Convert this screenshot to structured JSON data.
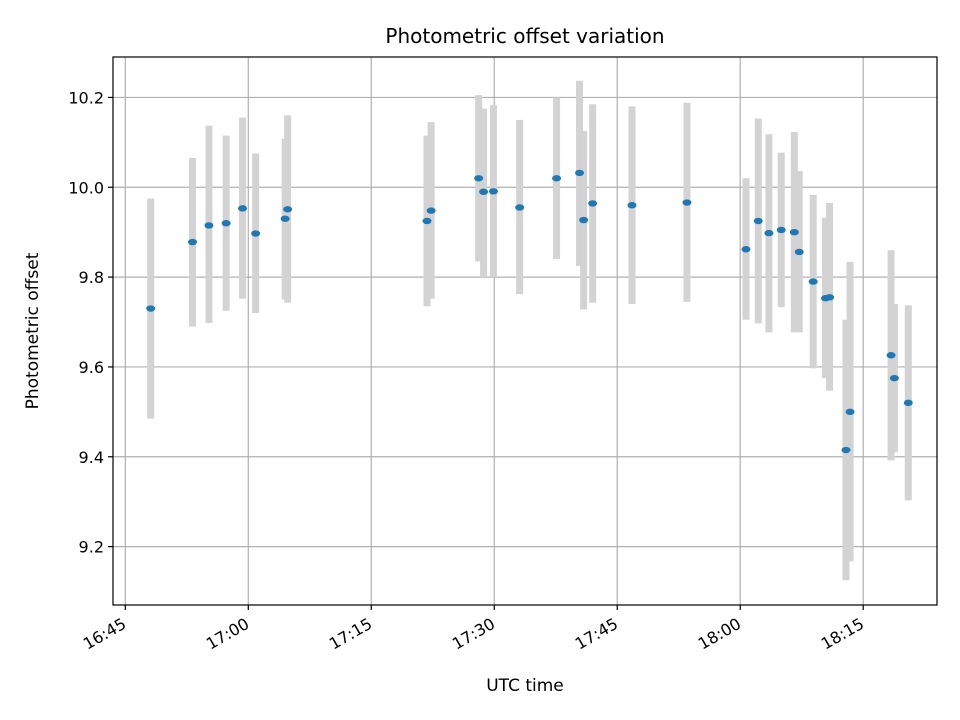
{
  "chart_data": {
    "type": "scatter",
    "title": "Photometric offset variation",
    "xlabel": "UTC time",
    "ylabel": "Photometric offset",
    "x_tick_labels": [
      "16:45",
      "17:00",
      "17:15",
      "17:30",
      "17:45",
      "18:00",
      "18:15"
    ],
    "x_tick_minutes": [
      1005,
      1020,
      1035,
      1050,
      1065,
      1080,
      1095
    ],
    "y_ticks": [
      "9.2",
      "9.4",
      "9.6",
      "9.8",
      "10.0",
      "10.2"
    ],
    "y_tick_values": [
      9.2,
      9.4,
      9.6,
      9.8,
      10.0,
      10.2
    ],
    "xlim": [
      "16:43:30",
      "18:24:00"
    ],
    "ylim": [
      9.07,
      10.29
    ],
    "grid": true,
    "colors": {
      "point": "#1f77b4",
      "errorbar": "#d3d3d3",
      "grid": "#b0b0b0"
    },
    "points": [
      {
        "time": "16:48:06",
        "y": 9.73,
        "ylow": 9.485,
        "yhigh": 9.975
      },
      {
        "time": "16:53:12",
        "y": 9.878,
        "ylow": 9.69,
        "yhigh": 10.065
      },
      {
        "time": "16:55:12",
        "y": 9.915,
        "ylow": 9.698,
        "yhigh": 10.137
      },
      {
        "time": "16:57:18",
        "y": 9.92,
        "ylow": 9.725,
        "yhigh": 10.115
      },
      {
        "time": "16:59:18",
        "y": 9.953,
        "ylow": 9.752,
        "yhigh": 10.155
      },
      {
        "time": "17:00:54",
        "y": 9.897,
        "ylow": 9.72,
        "yhigh": 10.075
      },
      {
        "time": "17:04:30",
        "y": 9.93,
        "ylow": 9.75,
        "yhigh": 10.108
      },
      {
        "time": "17:04:48",
        "y": 9.951,
        "ylow": 9.743,
        "yhigh": 10.16
      },
      {
        "time": "17:21:48",
        "y": 9.925,
        "ylow": 9.735,
        "yhigh": 10.115
      },
      {
        "time": "17:22:18",
        "y": 9.948,
        "ylow": 9.752,
        "yhigh": 10.145
      },
      {
        "time": "17:28:06",
        "y": 10.02,
        "ylow": 9.835,
        "yhigh": 10.205
      },
      {
        "time": "17:28:42",
        "y": 9.99,
        "ylow": 9.8,
        "yhigh": 10.175
      },
      {
        "time": "17:29:54",
        "y": 9.991,
        "ylow": 9.8,
        "yhigh": 10.183
      },
      {
        "time": "17:33:06",
        "y": 9.955,
        "ylow": 9.762,
        "yhigh": 10.15
      },
      {
        "time": "17:37:36",
        "y": 10.02,
        "ylow": 9.84,
        "yhigh": 10.2
      },
      {
        "time": "17:40:24",
        "y": 10.032,
        "ylow": 9.825,
        "yhigh": 10.237
      },
      {
        "time": "17:40:54",
        "y": 9.927,
        "ylow": 9.728,
        "yhigh": 10.125
      },
      {
        "time": "17:42:00",
        "y": 9.964,
        "ylow": 9.743,
        "yhigh": 10.185
      },
      {
        "time": "17:46:48",
        "y": 9.96,
        "ylow": 9.74,
        "yhigh": 10.18
      },
      {
        "time": "17:53:30",
        "y": 9.966,
        "ylow": 9.745,
        "yhigh": 10.188
      },
      {
        "time": "18:00:42",
        "y": 9.862,
        "ylow": 9.705,
        "yhigh": 10.02
      },
      {
        "time": "18:02:12",
        "y": 9.925,
        "ylow": 9.697,
        "yhigh": 10.153
      },
      {
        "time": "18:03:30",
        "y": 9.898,
        "ylow": 9.677,
        "yhigh": 10.118
      },
      {
        "time": "18:05:00",
        "y": 9.905,
        "ylow": 9.733,
        "yhigh": 10.077
      },
      {
        "time": "18:06:36",
        "y": 9.9,
        "ylow": 9.677,
        "yhigh": 10.123
      },
      {
        "time": "18:07:12",
        "y": 9.856,
        "ylow": 9.677,
        "yhigh": 10.036
      },
      {
        "time": "18:08:54",
        "y": 9.79,
        "ylow": 9.597,
        "yhigh": 9.983
      },
      {
        "time": "18:10:24",
        "y": 9.753,
        "ylow": 9.575,
        "yhigh": 9.932
      },
      {
        "time": "18:10:54",
        "y": 9.755,
        "ylow": 9.547,
        "yhigh": 9.965
      },
      {
        "time": "18:12:54",
        "y": 9.415,
        "ylow": 9.125,
        "yhigh": 9.705
      },
      {
        "time": "18:13:24",
        "y": 9.5,
        "ylow": 9.167,
        "yhigh": 9.834
      },
      {
        "time": "18:18:24",
        "y": 9.626,
        "ylow": 9.392,
        "yhigh": 9.86
      },
      {
        "time": "18:18:48",
        "y": 9.575,
        "ylow": 9.41,
        "yhigh": 9.74
      },
      {
        "time": "18:20:30",
        "y": 9.52,
        "ylow": 9.303,
        "yhigh": 9.737
      }
    ]
  }
}
